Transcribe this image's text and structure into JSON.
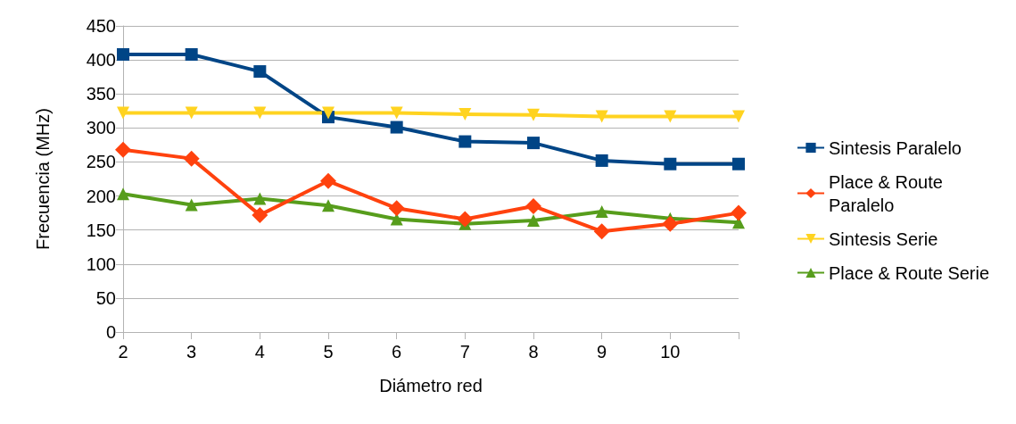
{
  "chart_data": {
    "type": "line",
    "xlabel": "Diámetro red",
    "ylabel": "Frecuencia (MHz)",
    "categories": [
      "2",
      "3",
      "4",
      "5",
      "6",
      "7",
      "8",
      "9",
      "10",
      null
    ],
    "ylim": [
      0,
      450
    ],
    "yticks": [
      0,
      50,
      100,
      150,
      200,
      250,
      300,
      350,
      400,
      450
    ],
    "grid": "y",
    "legend": "right",
    "line_style": "solid",
    "series": [
      {
        "name": "Sintesis Paralelo",
        "color": "#004586",
        "marker": "square",
        "values": [
          408,
          408,
          383,
          316,
          301,
          280,
          278,
          252,
          247,
          247
        ]
      },
      {
        "name": "Place & Route Paralelo",
        "color": "#ff420e",
        "marker": "diamond",
        "values": [
          268,
          255,
          172,
          222,
          182,
          166,
          185,
          148,
          159,
          175
        ]
      },
      {
        "name": "Sintesis Serie",
        "color": "#ffd320",
        "marker": "triangle-down",
        "values": [
          322,
          322,
          322,
          322,
          322,
          320,
          319,
          317,
          317,
          317
        ]
      },
      {
        "name": "Place & Route Serie",
        "color": "#579d1c",
        "marker": "triangle",
        "values": [
          203,
          187,
          196,
          186,
          166,
          159,
          164,
          177,
          167,
          161
        ]
      }
    ]
  }
}
